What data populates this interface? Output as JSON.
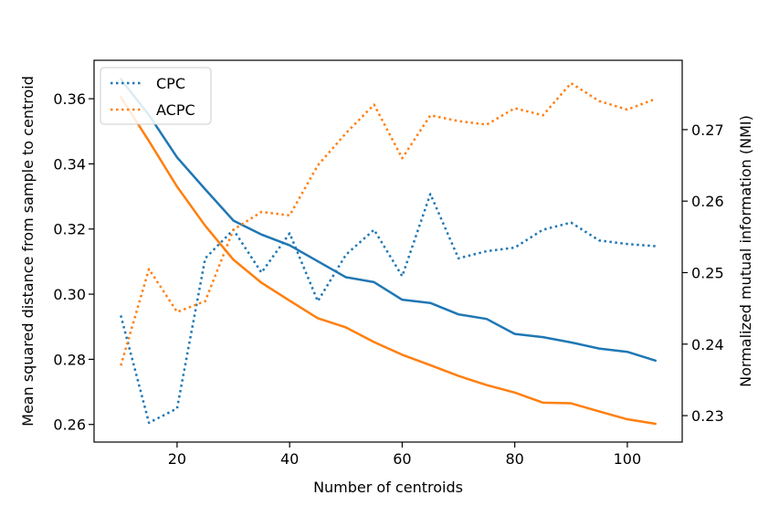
{
  "chart_data": {
    "type": "line",
    "title": "",
    "xlabel": "Number of centroids",
    "ylabel": "Mean squared distance from sample to centroid",
    "y2label": "Normalized mutual information (NMI)",
    "xlim": [
      5.25,
      109.75
    ],
    "ylim": [
      0.2546,
      0.3718
    ],
    "y2lim": [
      0.2263,
      0.2797
    ],
    "x_ticks": [
      20,
      40,
      60,
      80,
      100
    ],
    "x_tick_labels": [
      "20",
      "40",
      "60",
      "80",
      "100"
    ],
    "y_ticks": [
      0.26,
      0.28,
      0.3,
      0.32,
      0.34,
      0.36
    ],
    "y_tick_labels": [
      "0.26",
      "0.28",
      "0.30",
      "0.32",
      "0.34",
      "0.36"
    ],
    "y2_ticks": [
      0.23,
      0.24,
      0.25,
      0.26,
      0.27
    ],
    "y2_tick_labels": [
      "0.23",
      "0.24",
      "0.25",
      "0.26",
      "0.27"
    ],
    "grid": false,
    "legend_position": "top-left",
    "x": [
      10,
      15,
      20,
      25,
      30,
      35,
      40,
      45,
      50,
      55,
      60,
      65,
      70,
      75,
      80,
      85,
      90,
      95,
      100,
      105
    ],
    "series": [
      {
        "name": "CPC",
        "axis": "left",
        "style": "solid",
        "color": "#1f77b4",
        "values": [
          0.366,
          0.355,
          0.342,
          0.3322,
          0.3226,
          0.3183,
          0.315,
          0.3101,
          0.3052,
          0.3037,
          0.2983,
          0.2973,
          0.2938,
          0.2924,
          0.2878,
          0.2868,
          0.2852,
          0.2833,
          0.2823,
          0.2796
        ]
      },
      {
        "name": "ACPC",
        "axis": "left",
        "style": "solid",
        "color": "#ff7f0e",
        "values": [
          0.3605,
          0.347,
          0.333,
          0.321,
          0.3106,
          0.3035,
          0.298,
          0.2926,
          0.2898,
          0.2853,
          0.2814,
          0.2782,
          0.2749,
          0.2721,
          0.2698,
          0.2667,
          0.2665,
          0.264,
          0.2616,
          0.2602
        ]
      },
      {
        "name": "CPC",
        "axis": "right",
        "style": "dotted",
        "color": "#1f77b4",
        "values": [
          0.244,
          0.229,
          0.231,
          0.252,
          0.256,
          0.25,
          0.2555,
          0.246,
          0.2525,
          0.256,
          0.2495,
          0.261,
          0.252,
          0.253,
          0.2535,
          0.256,
          0.257,
          0.2545,
          0.254,
          0.2537
        ]
      },
      {
        "name": "ACPC",
        "axis": "right",
        "style": "dotted",
        "color": "#ff7f0e",
        "values": [
          0.237,
          0.2505,
          0.2445,
          0.246,
          0.256,
          0.2585,
          0.258,
          0.265,
          0.2695,
          0.2735,
          0.266,
          0.272,
          0.2712,
          0.2707,
          0.273,
          0.272,
          0.2765,
          0.274,
          0.2728,
          0.2743
        ]
      }
    ],
    "legend": [
      {
        "label": "CPC",
        "color": "#1f77b4",
        "style": "dotted"
      },
      {
        "label": "ACPC",
        "color": "#ff7f0e",
        "style": "dotted"
      }
    ]
  }
}
